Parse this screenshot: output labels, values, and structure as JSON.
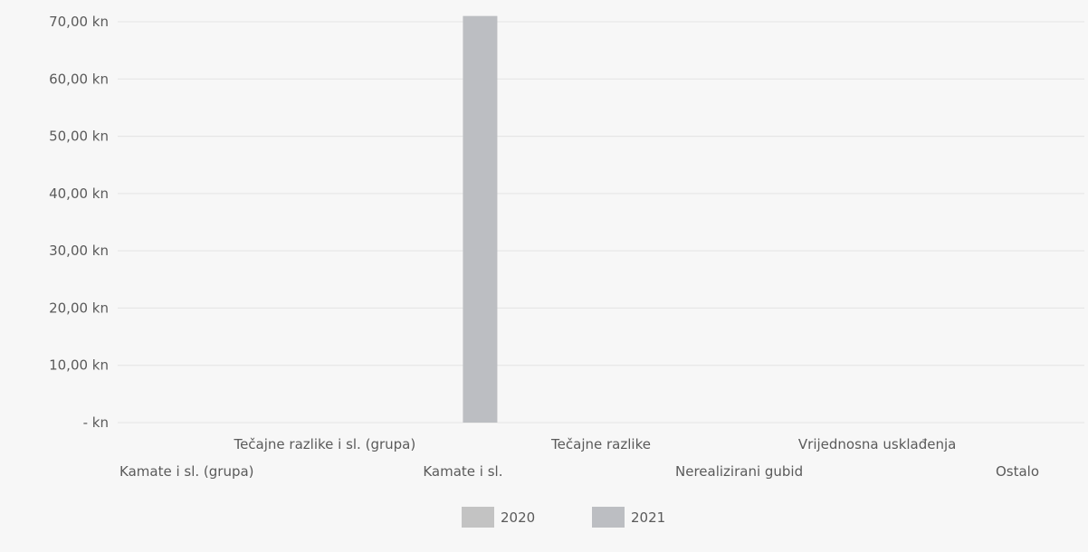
{
  "chart_data": {
    "type": "bar",
    "categories": [
      "Kamate i sl. (grupa)",
      "Tečajne razlike i sl. (grupa)",
      "Kamate i sl.",
      "Tečajne razlike",
      "Nerealizirani gubid",
      "Vrijednosna usklađenja",
      "Ostalo"
    ],
    "series": [
      {
        "name": "2020",
        "values": [
          0,
          0,
          0,
          0,
          0,
          0,
          0
        ],
        "color": "#c3c3c3"
      },
      {
        "name": "2021",
        "values": [
          0,
          0,
          71,
          0,
          0,
          0,
          0
        ],
        "color": "#bcbec2"
      }
    ],
    "y_ticks": [
      "-  kn",
      "10,00 kn",
      "20,00 kn",
      "30,00 kn",
      "40,00 kn",
      "50,00 kn",
      "60,00 kn",
      "70,00 kn"
    ],
    "ylim": [
      0,
      70
    ],
    "grid": true,
    "legend_position": "bottom-center"
  }
}
